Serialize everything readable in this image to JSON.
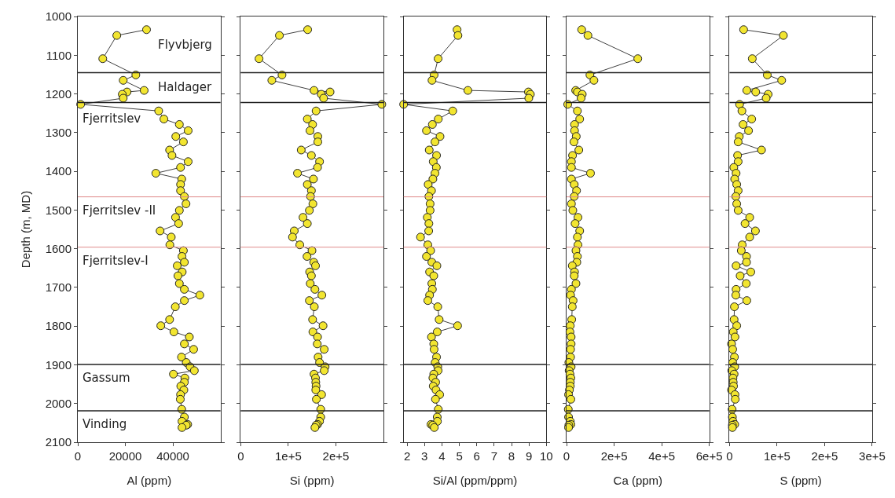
{
  "chart_data": [
    {
      "type": "line",
      "xlabel": "Al (ppm)",
      "ylabel": "Depth (m, MD)",
      "xlim": [
        0,
        60000
      ],
      "xticks": [
        0,
        20000,
        40000
      ],
      "ylim": [
        2100,
        1000
      ],
      "yticks": [
        1000,
        1100,
        1200,
        1300,
        1400,
        1500,
        1600,
        1700,
        1800,
        1900,
        2000,
        2100
      ],
      "marker": "circle",
      "line_style": "solid",
      "series": [
        {
          "color": "#f2e530",
          "x": [
            28900,
            16400,
            10500,
            24400,
            19100,
            27900,
            20700,
            18700,
            19100,
            1200,
            34000,
            36200,
            42700,
            46400,
            41200,
            44400,
            38600,
            39600,
            46400,
            43200,
            32800,
            43700,
            43200,
            43200,
            44800,
            45500,
            42700,
            41100,
            42400,
            34600,
            39300,
            38700,
            44400,
            43800,
            44800,
            41800,
            43900,
            42100,
            42700,
            44800,
            51300,
            44800,
            41000,
            38600,
            34900,
            40400,
            46900,
            44800,
            48700,
            43600,
            45600,
            47200,
            49000,
            40200,
            45000,
            44800,
            43300,
            44600,
            43200,
            43100,
            43700,
            44800,
            43800,
            46200,
            45600,
            43800
          ],
          "values": [
            1034,
            1049,
            1109,
            1151,
            1165,
            1191,
            1195,
            1201,
            1211,
            1227,
            1244,
            1265,
            1279,
            1295,
            1310,
            1324,
            1345,
            1359,
            1375,
            1390,
            1405,
            1420,
            1434,
            1450,
            1465,
            1484,
            1501,
            1519,
            1535,
            1554,
            1570,
            1590,
            1605,
            1620,
            1635,
            1644,
            1660,
            1670,
            1690,
            1705,
            1720,
            1734,
            1750,
            1783,
            1799,
            1815,
            1828,
            1846,
            1860,
            1880,
            1894,
            1905,
            1915,
            1924,
            1934,
            1945,
            1955,
            1965,
            1977,
            1989,
            2015,
            2035,
            2046,
            2054,
            2056,
            2062
          ]
        }
      ],
      "ref_lines": [
        {
          "axis": "y",
          "value": 1145,
          "color": "#202020"
        },
        {
          "axis": "y",
          "value": 1222,
          "color": "#202020"
        },
        {
          "axis": "y",
          "value": 1466,
          "color": "#e08a8a"
        },
        {
          "axis": "y",
          "value": 1596,
          "color": "#e08a8a"
        },
        {
          "axis": "y",
          "value": 1899,
          "color": "#202020"
        },
        {
          "axis": "y",
          "value": 2019,
          "color": "#202020"
        }
      ],
      "annotations": [
        "Flyvbjerg",
        "Haldager",
        "Fjerritslev",
        "Fjerritslev -II",
        "Fjerritslev-I",
        "Gassum",
        "Vinding"
      ]
    },
    {
      "type": "line",
      "xlabel": "Si (ppm)",
      "xlim": [
        0,
        300000
      ],
      "xticks": [
        0,
        {
          "value": 100000,
          "label": "1e+5"
        },
        {
          "value": 200000,
          "label": "2e+5"
        }
      ],
      "ylim": [
        2100,
        1000
      ],
      "tick_labels": "x",
      "marker": "circle",
      "line_style": "solid",
      "series": [
        {
          "color": "#f2e530",
          "x": [
            140700,
            81300,
            38500,
            86800,
            65400,
            154100,
            187800,
            169400,
            174300,
            296600,
            158400,
            140000,
            151100,
            145600,
            162100,
            162100,
            127200,
            148600,
            165700,
            161500,
            119300,
            152900,
            140000,
            148600,
            146800,
            151700,
            144300,
            130900,
            140000,
            112500,
            108900,
            124200,
            149800,
            139400,
            153500,
            157200,
            144900,
            148600,
            146200,
            156000,
            170600,
            144300,
            154700,
            151100,
            173100,
            151700,
            161500,
            160900,
            175500,
            162700,
            165700,
            177400,
            175500,
            154100,
            157200,
            157800,
            158400,
            157800,
            170000,
            159000,
            168200,
            168200,
            165700,
            161500,
            158400,
            156000
          ],
          "values": [
            1034,
            1049,
            1109,
            1151,
            1165,
            1191,
            1195,
            1201,
            1211,
            1227,
            1244,
            1265,
            1279,
            1295,
            1310,
            1324,
            1345,
            1359,
            1375,
            1390,
            1405,
            1420,
            1434,
            1450,
            1465,
            1484,
            1501,
            1519,
            1535,
            1554,
            1570,
            1590,
            1605,
            1620,
            1635,
            1644,
            1660,
            1670,
            1690,
            1705,
            1720,
            1734,
            1750,
            1783,
            1799,
            1815,
            1828,
            1846,
            1860,
            1880,
            1894,
            1905,
            1915,
            1924,
            1934,
            1945,
            1955,
            1965,
            1977,
            1989,
            2015,
            2035,
            2046,
            2054,
            2056,
            2062
          ]
        }
      ],
      "ref_lines": [
        {
          "axis": "y",
          "value": 1145,
          "color": "#202020"
        },
        {
          "axis": "y",
          "value": 1222,
          "color": "#202020"
        },
        {
          "axis": "y",
          "value": 1466,
          "color": "#e08a8a"
        },
        {
          "axis": "y",
          "value": 1596,
          "color": "#e08a8a"
        },
        {
          "axis": "y",
          "value": 1899,
          "color": "#202020"
        },
        {
          "axis": "y",
          "value": 2019,
          "color": "#202020"
        }
      ]
    },
    {
      "type": "line",
      "xlabel": "Si/Al (ppm/ppm)",
      "xlim": [
        1.8,
        10
      ],
      "xticks": [
        2,
        3,
        4,
        5,
        6,
        7,
        8,
        9,
        10
      ],
      "ylim": [
        2100,
        1000
      ],
      "tick_labels": "x",
      "marker": "circle",
      "line_style": "solid",
      "series": [
        {
          "color": "#f2e530",
          "x": [
            4.87,
            4.92,
            3.78,
            3.55,
            3.43,
            5.49,
            8.97,
            9.08,
            8.99,
            1.8,
            4.62,
            3.79,
            3.45,
            3.11,
            3.89,
            3.6,
            3.27,
            3.69,
            3.5,
            3.68,
            3.6,
            3.48,
            3.21,
            3.4,
            3.25,
            3.32,
            3.32,
            3.16,
            3.25,
            3.24,
            2.77,
            3.19,
            3.35,
            3.11,
            3.42,
            3.71,
            3.29,
            3.53,
            3.42,
            3.45,
            3.29,
            3.19,
            3.76,
            3.84,
            4.9,
            3.73,
            3.4,
            3.53,
            3.55,
            3.69,
            3.61,
            3.76,
            3.78,
            3.53,
            3.48,
            3.64,
            3.5,
            3.66,
            3.87,
            3.63,
            3.79,
            3.73,
            3.74,
            3.37,
            3.47,
            3.56
          ],
          "values": [
            1034,
            1049,
            1109,
            1151,
            1165,
            1191,
            1195,
            1201,
            1211,
            1227,
            1244,
            1265,
            1279,
            1295,
            1310,
            1324,
            1345,
            1359,
            1375,
            1390,
            1405,
            1420,
            1434,
            1450,
            1465,
            1484,
            1501,
            1519,
            1535,
            1554,
            1570,
            1590,
            1605,
            1620,
            1635,
            1644,
            1660,
            1670,
            1690,
            1705,
            1720,
            1734,
            1750,
            1783,
            1799,
            1815,
            1828,
            1846,
            1860,
            1880,
            1894,
            1905,
            1915,
            1924,
            1934,
            1945,
            1955,
            1965,
            1977,
            1989,
            2015,
            2035,
            2046,
            2054,
            2056,
            2062
          ]
        }
      ],
      "ref_lines": [
        {
          "axis": "y",
          "value": 1145,
          "color": "#202020"
        },
        {
          "axis": "y",
          "value": 1222,
          "color": "#202020"
        },
        {
          "axis": "y",
          "value": 1466,
          "color": "#e08a8a"
        },
        {
          "axis": "y",
          "value": 1596,
          "color": "#e08a8a"
        },
        {
          "axis": "y",
          "value": 1899,
          "color": "#202020"
        },
        {
          "axis": "y",
          "value": 2019,
          "color": "#202020"
        }
      ]
    },
    {
      "type": "line",
      "xlabel": "Ca (ppm)",
      "xlim": [
        0,
        600000
      ],
      "xticks": [
        0,
        {
          "value": 200000,
          "label": "2e+5"
        },
        {
          "value": 400000,
          "label": "4e+5"
        },
        {
          "value": 600000,
          "label": "6e+5"
        }
      ],
      "ylim": [
        2100,
        1000
      ],
      "tick_labels": "x",
      "marker": "circle",
      "line_style": "solid",
      "series": [
        {
          "color": "#f2e530",
          "x": [
            63500,
            89800,
            299400,
            98200,
            115000,
            38300,
            45500,
            65900,
            61100,
            4800,
            45500,
            55100,
            33500,
            33500,
            40700,
            31100,
            51500,
            25100,
            20400,
            20400,
            100600,
            20400,
            32300,
            41900,
            32300,
            20400,
            26300,
            47900,
            35900,
            55100,
            45500,
            47900,
            39500,
            45500,
            43100,
            24000,
            33500,
            32300,
            39500,
            20400,
            16800,
            27500,
            24000,
            21600,
            15600,
            14400,
            19200,
            19200,
            16800,
            16800,
            9600,
            19200,
            10800,
            14400,
            18000,
            15600,
            15600,
            12000,
            8400,
            18000,
            7200,
            8400,
            15600,
            18000,
            9600,
            8400
          ],
          "values": [
            1034,
            1049,
            1109,
            1151,
            1165,
            1191,
            1195,
            1201,
            1211,
            1227,
            1244,
            1265,
            1279,
            1295,
            1310,
            1324,
            1345,
            1359,
            1375,
            1390,
            1405,
            1420,
            1434,
            1450,
            1465,
            1484,
            1501,
            1519,
            1535,
            1554,
            1570,
            1590,
            1605,
            1620,
            1635,
            1644,
            1660,
            1670,
            1690,
            1705,
            1720,
            1734,
            1750,
            1783,
            1799,
            1815,
            1828,
            1846,
            1860,
            1880,
            1894,
            1905,
            1915,
            1924,
            1934,
            1945,
            1955,
            1965,
            1977,
            1989,
            2015,
            2035,
            2046,
            2054,
            2056,
            2062
          ]
        }
      ],
      "ref_lines": [
        {
          "axis": "y",
          "value": 1145,
          "color": "#202020"
        },
        {
          "axis": "y",
          "value": 1222,
          "color": "#202020"
        },
        {
          "axis": "y",
          "value": 1466,
          "color": "#e08a8a"
        },
        {
          "axis": "y",
          "value": 1596,
          "color": "#e08a8a"
        },
        {
          "axis": "y",
          "value": 1899,
          "color": "#202020"
        },
        {
          "axis": "y",
          "value": 2019,
          "color": "#202020"
        }
      ]
    },
    {
      "type": "line",
      "xlabel": "S (ppm)",
      "xlim": [
        0,
        300000
      ],
      "xticks": [
        0,
        {
          "value": 100000,
          "label": "1e+5"
        },
        {
          "value": 200000,
          "label": "2e+5"
        },
        {
          "value": 300000,
          "label": "3e+5"
        }
      ],
      "ylim": [
        2100,
        1000
      ],
      "tick_labels": "x",
      "marker": "circle",
      "line_style": "solid",
      "series": [
        {
          "color": "#f2e530",
          "x": [
            29700,
            113300,
            47900,
            79400,
            109700,
            36400,
            55100,
            81200,
            77000,
            21200,
            26100,
            46700,
            28500,
            40000,
            20600,
            18200,
            67300,
            17000,
            18200,
            9100,
            13900,
            10900,
            15200,
            18200,
            13300,
            15200,
            18200,
            42400,
            32700,
            54500,
            42400,
            26700,
            24800,
            35800,
            35800,
            13900,
            44800,
            22400,
            35200,
            13900,
            13300,
            36400,
            10300,
            9700,
            15200,
            7900,
            11500,
            4200,
            6700,
            10300,
            6700,
            10900,
            4800,
            9700,
            7300,
            7900,
            8500,
            4200,
            11500,
            12100,
            5500,
            6100,
            7300,
            10900,
            6100,
            6100
          ],
          "values": [
            1034,
            1049,
            1109,
            1151,
            1165,
            1191,
            1195,
            1201,
            1211,
            1227,
            1244,
            1265,
            1279,
            1295,
            1310,
            1324,
            1345,
            1359,
            1375,
            1390,
            1405,
            1420,
            1434,
            1450,
            1465,
            1484,
            1501,
            1519,
            1535,
            1554,
            1570,
            1590,
            1605,
            1620,
            1635,
            1644,
            1660,
            1670,
            1690,
            1705,
            1720,
            1734,
            1750,
            1783,
            1799,
            1815,
            1828,
            1846,
            1860,
            1880,
            1894,
            1905,
            1915,
            1924,
            1934,
            1945,
            1955,
            1965,
            1977,
            1989,
            2015,
            2035,
            2046,
            2054,
            2056,
            2062
          ]
        }
      ],
      "ref_lines": [
        {
          "axis": "y",
          "value": 1145,
          "color": "#202020"
        },
        {
          "axis": "y",
          "value": 1222,
          "color": "#202020"
        },
        {
          "axis": "y",
          "value": 1466,
          "color": "#e08a8a"
        },
        {
          "axis": "y",
          "value": 1596,
          "color": "#e08a8a"
        },
        {
          "axis": "y",
          "value": 1899,
          "color": "#202020"
        },
        {
          "axis": "y",
          "value": 2019,
          "color": "#202020"
        }
      ]
    }
  ]
}
